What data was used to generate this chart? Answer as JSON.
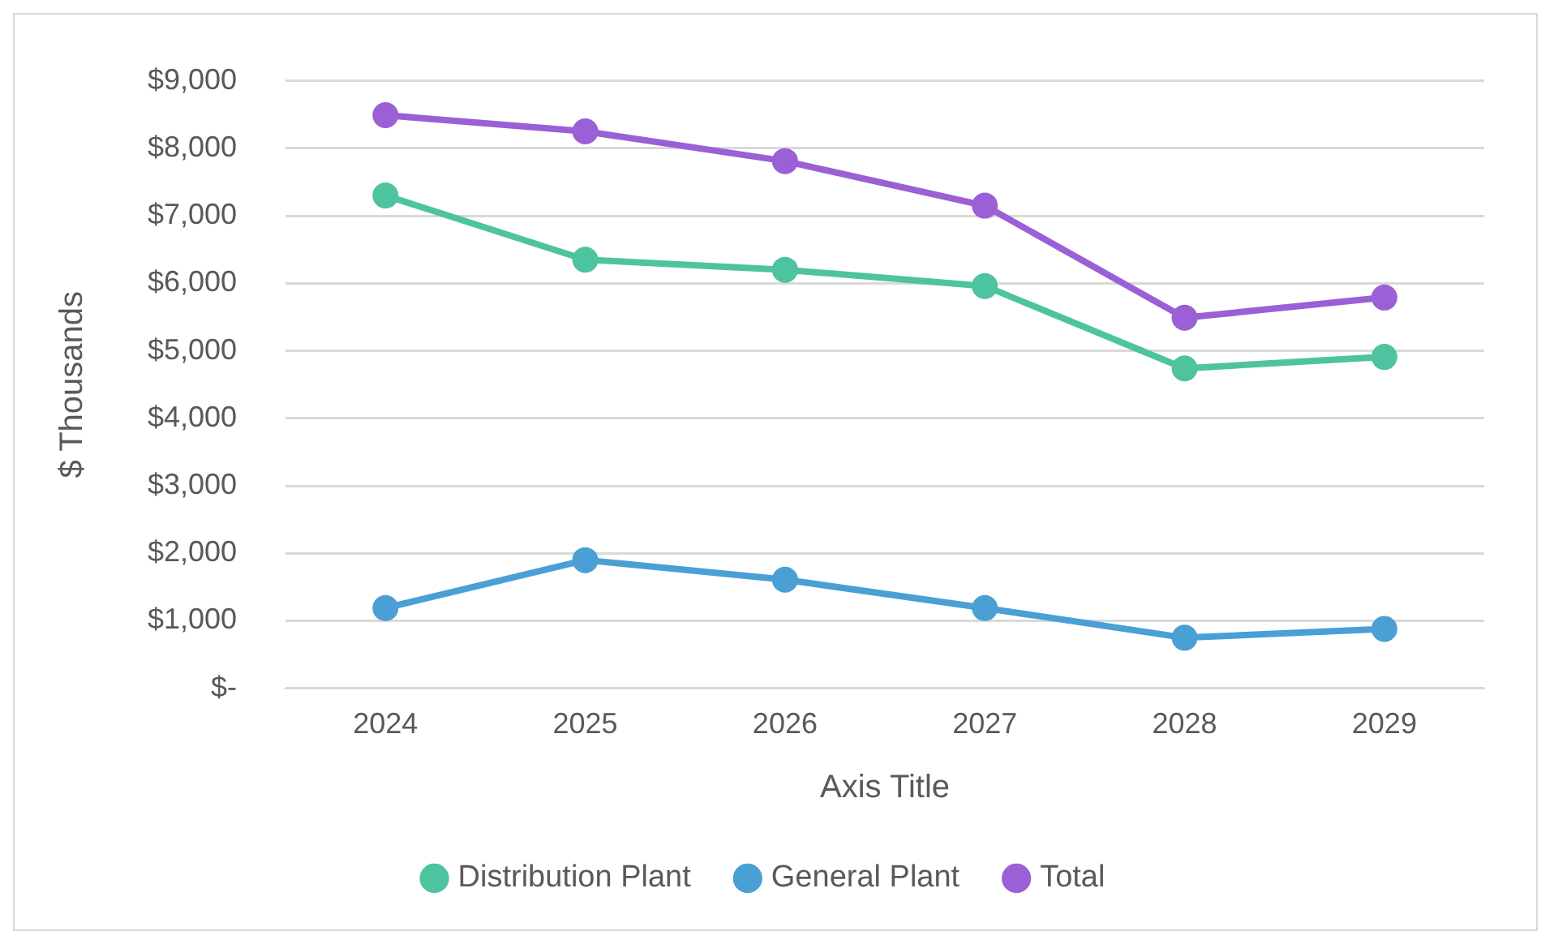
{
  "chart_data": {
    "type": "line",
    "xlabel": "Axis Title",
    "ylabel": "$ Thousands",
    "categories": [
      "2024",
      "2025",
      "2026",
      "2027",
      "2028",
      "2029"
    ],
    "series": [
      {
        "name": "Distribution Plant",
        "color": "#4ec3a0",
        "values": [
          7300,
          6350,
          6200,
          5960,
          4740,
          4910
        ]
      },
      {
        "name": "General Plant",
        "color": "#4a9fd5",
        "values": [
          1190,
          1900,
          1610,
          1190,
          750,
          880
        ]
      },
      {
        "name": "Total",
        "color": "#9b5fd6",
        "values": [
          8490,
          8250,
          7810,
          7150,
          5490,
          5790
        ]
      }
    ],
    "ylim": [
      0,
      9000
    ],
    "yticks": [
      {
        "value": 0,
        "label": "$-"
      },
      {
        "value": 1000,
        "label": "$1,000"
      },
      {
        "value": 2000,
        "label": "$2,000"
      },
      {
        "value": 3000,
        "label": "$3,000"
      },
      {
        "value": 4000,
        "label": "$4,000"
      },
      {
        "value": 5000,
        "label": "$5,000"
      },
      {
        "value": 6000,
        "label": "$6,000"
      },
      {
        "value": 7000,
        "label": "$7,000"
      },
      {
        "value": 8000,
        "label": "$8,000"
      },
      {
        "value": 9000,
        "label": "$9,000"
      }
    ],
    "grid": "y",
    "legend": "bottom",
    "marker": "circle",
    "line_style": "solid"
  }
}
